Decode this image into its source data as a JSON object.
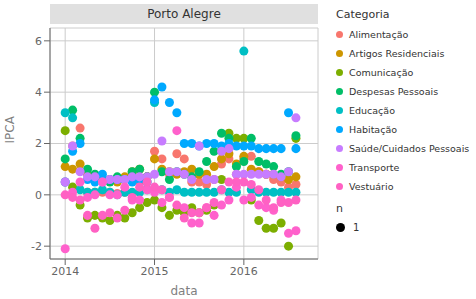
{
  "chart_data": {
    "type": "scatter",
    "title": "Porto Alegre",
    "x_label": "data",
    "y_label": "IPCA",
    "xlim": [
      2013.83,
      2016.83
    ],
    "xticks": [
      2014,
      2015,
      2016
    ],
    "ylim": [
      -2.5,
      6.5
    ],
    "yticks": [
      -2,
      0,
      2,
      4,
      6
    ],
    "grid": true,
    "legend": "right",
    "legend_title": "Categoria",
    "size_legend": {
      "title": "n",
      "values": [
        1
      ]
    },
    "x": [
      2014.0,
      2014.083,
      2014.167,
      2014.25,
      2014.333,
      2014.417,
      2014.5,
      2014.583,
      2014.667,
      2014.75,
      2014.833,
      2014.917,
      2015.0,
      2015.083,
      2015.167,
      2015.25,
      2015.333,
      2015.417,
      2015.5,
      2015.583,
      2015.667,
      2015.75,
      2015.833,
      2015.917,
      2016.0,
      2016.083,
      2016.167,
      2016.25,
      2016.333,
      2016.417,
      2016.5,
      2016.583
    ],
    "series": [
      {
        "name": "Alimentação",
        "color": "#F8766D",
        "values": [
          0.5,
          1.9,
          2.6,
          0.1,
          0.1,
          0.1,
          0.1,
          0.05,
          0.1,
          0.8,
          0.5,
          0.7,
          1.7,
          1.4,
          0.8,
          1.6,
          1.4,
          0.5,
          0.5,
          0.4,
          0.6,
          1.2,
          1.4,
          0.8,
          1.4,
          1.5,
          0.9,
          0.8,
          0.6,
          0.5,
          0.3,
          0.4
        ]
      },
      {
        "name": "Artigos Residenciais",
        "color": "#CD9600",
        "values": [
          1.1,
          1.0,
          1.2,
          0.8,
          0.6,
          0.6,
          0.6,
          0.5,
          0.7,
          0.9,
          1.0,
          0.7,
          1.4,
          1.0,
          0.9,
          0.8,
          0.9,
          1.0,
          0.8,
          0.8,
          1.1,
          1.4,
          1.6,
          1.2,
          1.5,
          1.0,
          0.9,
          0.8,
          0.8,
          0.7,
          0.6,
          0.7
        ]
      },
      {
        "name": "Comunicação",
        "color": "#7CAE00",
        "values": [
          2.5,
          0.3,
          -0.4,
          -0.9,
          -0.8,
          -0.9,
          -1.0,
          -0.8,
          -0.9,
          -0.7,
          -0.5,
          -0.3,
          -0.2,
          -0.5,
          -0.8,
          -0.6,
          -0.7,
          -0.5,
          -0.7,
          -0.6,
          -0.4,
          0.6,
          2.4,
          2.2,
          2.2,
          -0.2,
          -1.0,
          -1.3,
          -1.3,
          -1.1,
          -2.0,
          2.2
        ]
      },
      {
        "name": "Despesas Pessoais",
        "color": "#00BE67",
        "values": [
          1.4,
          3.3,
          2.2,
          1.0,
          0.8,
          0.6,
          0.5,
          0.7,
          0.6,
          0.9,
          1.0,
          0.7,
          4.0,
          0.9,
          0.6,
          0.9,
          0.8,
          0.7,
          0.9,
          1.3,
          1.7,
          2.4,
          2.2,
          1.1,
          1.3,
          2.2,
          1.3,
          1.2,
          1.1,
          0.8,
          0.9,
          2.3
        ]
      },
      {
        "name": "Educação",
        "color": "#00BFC4",
        "values": [
          3.2,
          3.0,
          0.2,
          0.1,
          0.1,
          0.2,
          0.1,
          0.0,
          0.1,
          0.1,
          0.1,
          0.2,
          3.6,
          0.2,
          0.1,
          0.2,
          0.1,
          0.1,
          0.1,
          0.1,
          0.1,
          0.2,
          0.1,
          0.1,
          5.6,
          0.2,
          0.1,
          0.1,
          0.1,
          0.1,
          0.1,
          0.1
        ]
      },
      {
        "name": "Habitação",
        "color": "#00A9FF",
        "values": [
          0.5,
          1.7,
          2.0,
          0.6,
          0.5,
          0.8,
          0.6,
          0.6,
          0.6,
          0.5,
          0.6,
          0.5,
          3.7,
          4.2,
          3.6,
          3.2,
          2.0,
          2.0,
          1.9,
          2.0,
          2.0,
          1.9,
          2.0,
          1.9,
          1.9,
          1.9,
          1.8,
          1.8,
          1.8,
          1.8,
          3.2,
          1.8
        ]
      },
      {
        "name": "Saúde/Cuidados Pessoais",
        "color": "#C77CFF",
        "values": [
          0.5,
          1.9,
          0.9,
          0.7,
          0.7,
          0.5,
          0.6,
          0.6,
          0.6,
          0.7,
          0.7,
          0.7,
          0.8,
          2.1,
          0.9,
          0.9,
          0.8,
          0.6,
          1.9,
          0.6,
          0.6,
          1.7,
          1.8,
          0.8,
          0.8,
          0.8,
          0.8,
          0.8,
          0.8,
          0.7,
          0.9,
          3.0
        ]
      },
      {
        "name": "Transporte",
        "color": "#FF61CC",
        "values": [
          -2.1,
          0.1,
          0.5,
          -0.1,
          0.0,
          0.5,
          0.0,
          0.0,
          0.3,
          -0.2,
          -0.2,
          0.2,
          0.1,
          -0.3,
          -0.1,
          2.5,
          -0.5,
          -1.1,
          -1.1,
          -0.5,
          -0.8,
          -0.4,
          -0.2,
          0.3,
          -0.2,
          -0.1,
          -0.4,
          -0.5,
          -0.6,
          -0.2,
          -1.5,
          -1.4
        ]
      },
      {
        "name": "Vestuário",
        "color": "#FF61C3",
        "values": [
          0.0,
          -0.1,
          -0.2,
          -0.8,
          -1.3,
          -0.8,
          -0.7,
          -0.9,
          -0.6,
          -0.1,
          0.3,
          0.5,
          0.3,
          0.2,
          -0.1,
          -0.4,
          -0.9,
          -0.7,
          -0.7,
          -0.5,
          -0.3,
          0.2,
          0.5,
          0.5,
          0.5,
          0.4,
          0.2,
          -0.2,
          -0.5,
          -0.3,
          -0.3,
          -0.2
        ]
      }
    ]
  }
}
